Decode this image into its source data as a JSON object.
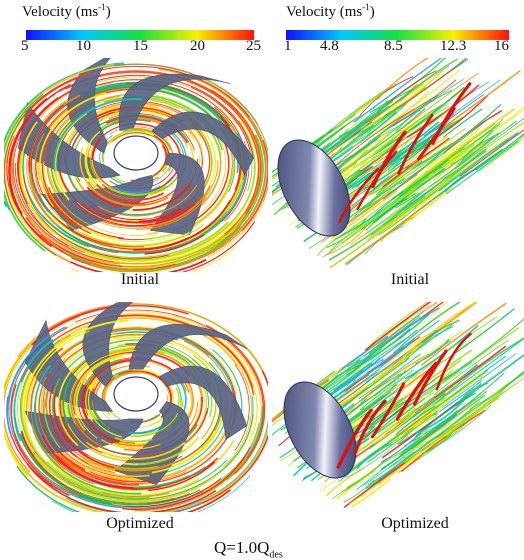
{
  "colorbars": [
    {
      "title": "Velocity  (ms",
      "title_sup": "-1",
      "title_end": ")",
      "ticks": [
        "5",
        "10",
        "15",
        "20",
        "25"
      ],
      "colors": [
        "#1010ff",
        "#00c8ff",
        "#18e040",
        "#f8f000",
        "#ff1010"
      ]
    },
    {
      "title": "Velocity   (ms",
      "title_sup": "-1",
      "title_end": ")",
      "ticks": [
        "1",
        "4.8",
        "8.5",
        "12.3",
        "16"
      ],
      "colors": [
        "#1010ff",
        "#00c8ff",
        "#18e040",
        "#f8f000",
        "#ff1010"
      ]
    }
  ],
  "captions": {
    "top_left": "Initial",
    "top_right": "Initial",
    "bottom_left": "Optimized",
    "bottom_right": "Optimized"
  },
  "condition": {
    "main": "Q=1.0Q",
    "sub": "des"
  }
}
